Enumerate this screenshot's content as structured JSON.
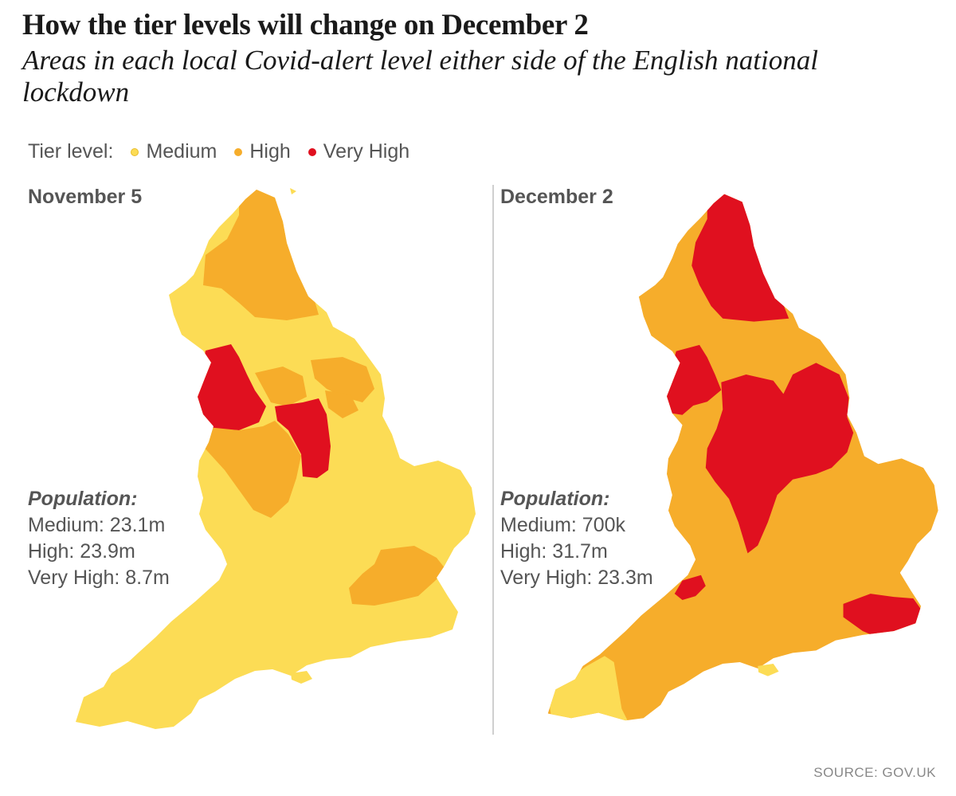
{
  "title": "How the tier levels will change on December 2",
  "subtitle": "Areas in each local Covid-alert level either side of the English national lockdown",
  "legend": {
    "label": "Tier level:",
    "items": [
      {
        "label": "Medium",
        "color": "#fcdc55"
      },
      {
        "label": "High",
        "color": "#f6ad2b"
      },
      {
        "label": "Very High",
        "color": "#e0101f"
      }
    ]
  },
  "maps": [
    {
      "title": "November 5",
      "population_heading": "Population:",
      "population": [
        {
          "text": "Medium: 23.1m"
        },
        {
          "text": "High: 23.9m"
        },
        {
          "text": "Very High: 8.7m"
        }
      ]
    },
    {
      "title": "December 2",
      "population_heading": "Population:",
      "population": [
        {
          "text": "Medium: 700k"
        },
        {
          "text": "High: 31.7m"
        },
        {
          "text": "Very High: 23.3m"
        }
      ]
    }
  ],
  "source": "SOURCE: GOV.UK"
}
